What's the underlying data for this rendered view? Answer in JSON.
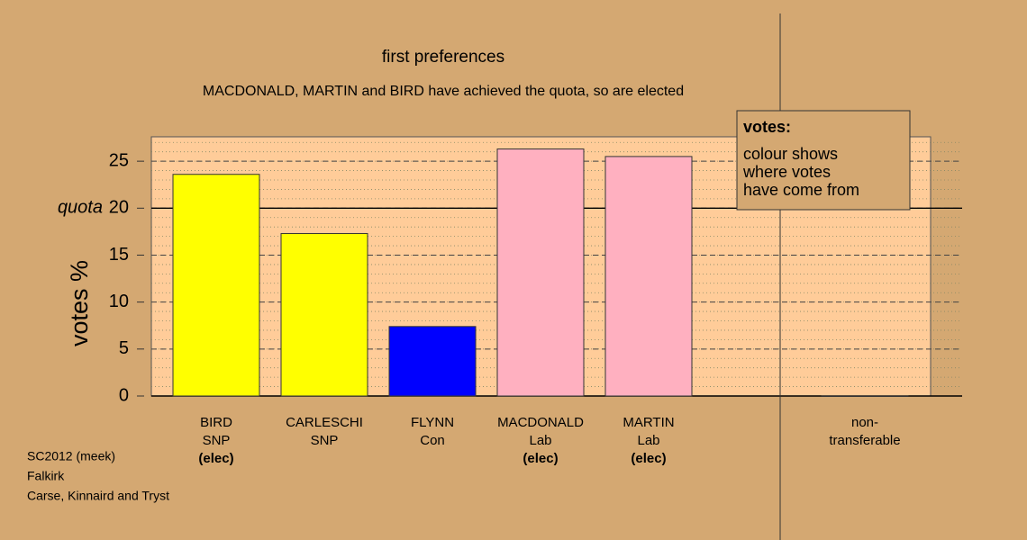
{
  "chart_data": {
    "type": "bar",
    "title": "first preferences",
    "subtitle": "MACDONALD, MARTIN and BIRD have achieved the quota, so are elected",
    "ylabel": "votes %",
    "categories": [
      [
        "BIRD",
        "SNP",
        "(elec)"
      ],
      [
        "CARLESCHI",
        "SNP"
      ],
      [
        "FLYNN",
        "Con"
      ],
      [
        "MACDONALD",
        "Lab",
        "(elec)"
      ],
      [
        "MARTIN",
        "Lab",
        "(elec)"
      ],
      null,
      [
        "non-",
        "transferable"
      ]
    ],
    "values": [
      23.6,
      17.3,
      7.4,
      26.3,
      25.5,
      null,
      0
    ],
    "colors": [
      "#ffff00",
      "#ffff00",
      "#0000ff",
      "#ffb0c0",
      "#ffb0c0",
      null,
      "#ffcc99"
    ],
    "ylim": [
      0,
      27.6
    ],
    "yticks": [
      0,
      5,
      10,
      15,
      20,
      25
    ],
    "minor_grid_step": 1,
    "grid": true,
    "quota": {
      "value": 20,
      "label": "quota"
    },
    "legend": {
      "title": "votes:",
      "lines": [
        "colour shows",
        "where votes",
        "have come from"
      ]
    },
    "notes": [
      "SC2012 (meek)",
      "Falkirk",
      "Carse, Kinnaird and Tryst"
    ]
  }
}
